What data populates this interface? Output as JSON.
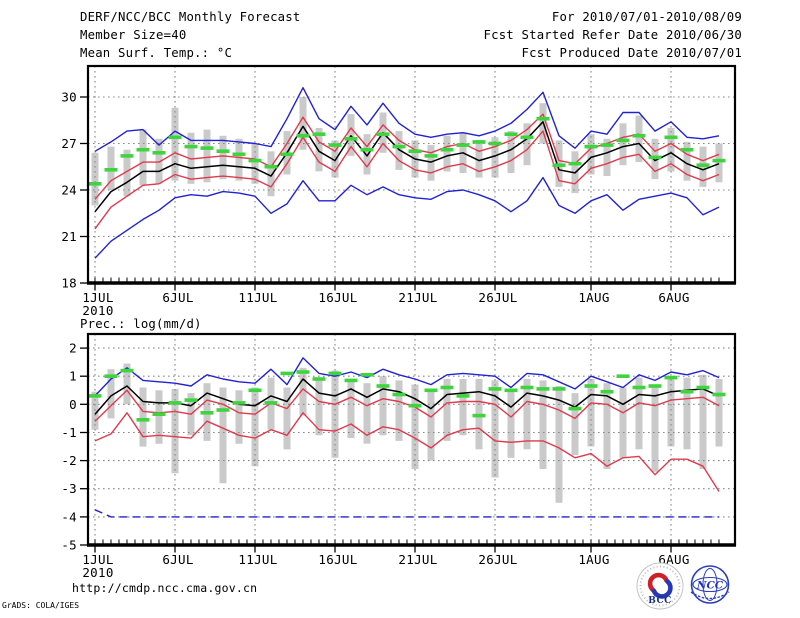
{
  "header": {
    "title": "DERF/NCC/BCC Monthly Forecast",
    "member_size": "Member Size=40",
    "for_period": "For 2010/07/01-2010/08/09",
    "refer_date": "Fcst Started Refer Date 2010/06/30",
    "produced_date": "Fcst Produced Date 2010/07/01"
  },
  "footer": {
    "url": "http://cmdp.ncc.cma.gov.cn",
    "credit": "GrADS: COLA/IGES",
    "logos": [
      {
        "id": "bcc",
        "text": "BCC"
      },
      {
        "id": "ncc",
        "text": "NCC"
      }
    ]
  },
  "colors": {
    "max_min_line": "#2222d2",
    "spread_line": "#e03a4e",
    "mean_line": "#000000",
    "obs_dash": "#3ed43e",
    "spread_bar": "#cacaca",
    "grid": "#8a8a8a",
    "frame": "#000000"
  },
  "chart_data": [
    {
      "id": "temperature",
      "type": "line",
      "title": "Mean Surf. Temp.: °C",
      "n_points": 40,
      "grid": true,
      "ylim": [
        18,
        32
      ],
      "yticks": [
        18,
        21,
        24,
        27,
        30
      ],
      "x_ticks": [
        {
          "day": 1,
          "label": "1JUL",
          "year": "2010"
        },
        {
          "day": 6,
          "label": "6JUL"
        },
        {
          "day": 11,
          "label": "11JUL"
        },
        {
          "day": 16,
          "label": "16JUL"
        },
        {
          "day": 21,
          "label": "21JUL"
        },
        {
          "day": 26,
          "label": "26JUL"
        },
        {
          "day": 32,
          "label": "1AUG"
        },
        {
          "day": 37,
          "label": "6AUG"
        }
      ],
      "series": [
        {
          "name": "member-max",
          "color": "#2222d2",
          "width": 1.4,
          "values": [
            26.5,
            27.1,
            27.8,
            27.9,
            26.9,
            27.8,
            27.2,
            27.2,
            27.2,
            27.1,
            27.0,
            26.8,
            28.6,
            30.6,
            28.6,
            27.9,
            29.4,
            28.2,
            29.6,
            28.3,
            27.6,
            27.4,
            27.6,
            27.7,
            27.5,
            27.8,
            28.3,
            29.2,
            30.3,
            27.5,
            26.7,
            27.8,
            27.6,
            29.0,
            29.0,
            27.8,
            28.4,
            27.4,
            27.3,
            27.5
          ]
        },
        {
          "name": "member-min",
          "color": "#2222d2",
          "width": 1.4,
          "values": [
            19.6,
            20.7,
            21.4,
            22.1,
            22.7,
            23.5,
            23.7,
            23.6,
            23.9,
            23.8,
            23.6,
            22.5,
            23.1,
            24.6,
            23.3,
            23.3,
            24.3,
            23.7,
            24.2,
            23.7,
            23.5,
            23.4,
            23.9,
            24.0,
            23.7,
            23.3,
            22.6,
            23.3,
            24.8,
            23.0,
            22.5,
            23.3,
            23.7,
            22.7,
            23.4,
            23.6,
            23.8,
            23.5,
            22.4,
            22.9
          ]
        },
        {
          "name": "mean-plus-spread",
          "color": "#e03a4e",
          "width": 1.4,
          "values": [
            23.4,
            24.6,
            25.2,
            25.8,
            25.8,
            26.4,
            26.0,
            26.1,
            26.2,
            26.1,
            26.0,
            25.5,
            27.0,
            28.7,
            27.1,
            26.5,
            28.0,
            26.8,
            28.2,
            27.2,
            26.6,
            26.4,
            26.8,
            27.0,
            26.5,
            26.8,
            27.2,
            27.9,
            28.9,
            25.9,
            25.7,
            26.7,
            27.0,
            27.4,
            27.6,
            26.5,
            27.0,
            26.3,
            25.9,
            26.3
          ]
        },
        {
          "name": "mean-minus-spread",
          "color": "#e03a4e",
          "width": 1.4,
          "values": [
            21.5,
            22.9,
            23.6,
            24.3,
            24.4,
            25.0,
            24.7,
            24.8,
            24.9,
            24.8,
            24.7,
            24.2,
            25.7,
            27.4,
            25.8,
            25.2,
            26.8,
            25.5,
            27.0,
            25.9,
            25.3,
            25.1,
            25.5,
            25.7,
            25.2,
            25.5,
            25.9,
            26.6,
            27.8,
            24.6,
            24.4,
            25.4,
            25.7,
            26.1,
            26.3,
            25.2,
            25.7,
            25.0,
            24.6,
            25.0
          ]
        },
        {
          "name": "ensemble-mean",
          "color": "#000000",
          "width": 1.5,
          "values": [
            22.6,
            23.9,
            24.5,
            25.2,
            25.2,
            25.7,
            25.4,
            25.5,
            25.6,
            25.5,
            25.4,
            24.9,
            26.4,
            28.1,
            26.5,
            25.9,
            27.5,
            26.2,
            27.7,
            26.6,
            26.0,
            25.8,
            26.2,
            26.4,
            25.9,
            26.2,
            26.6,
            27.3,
            28.4,
            25.3,
            25.1,
            26.1,
            26.4,
            26.8,
            27.0,
            25.9,
            26.4,
            25.7,
            25.3,
            25.7
          ]
        }
      ],
      "obs_dashes": {
        "name": "observation",
        "color": "#3ed43e",
        "values": [
          24.4,
          25.3,
          26.2,
          26.6,
          26.4,
          27.4,
          26.8,
          26.7,
          26.5,
          26.3,
          25.9,
          25.5,
          26.3,
          27.5,
          27.6,
          26.9,
          27.3,
          26.6,
          27.6,
          26.8,
          26.5,
          26.2,
          26.6,
          26.9,
          27.1,
          27.0,
          27.6,
          27.4,
          28.6,
          25.6,
          25.7,
          26.8,
          26.9,
          27.2,
          27.5,
          26.1,
          27.4,
          26.6,
          25.6,
          25.9
        ]
      },
      "spread_bars": {
        "name": "member-spread",
        "color": "#cacaca",
        "high": [
          26.4,
          26.8,
          26.6,
          27.9,
          27.3,
          29.3,
          27.7,
          27.9,
          27.5,
          27.3,
          27.0,
          26.5,
          27.8,
          30.0,
          28.0,
          27.2,
          28.9,
          27.6,
          29.0,
          27.8,
          27.2,
          26.9,
          27.5,
          27.7,
          27.2,
          27.4,
          27.8,
          28.3,
          29.6,
          27.2,
          26.5,
          27.6,
          27.3,
          28.3,
          28.8,
          27.3,
          28.0,
          27.1,
          26.8,
          27.0
        ],
        "low": [
          23.0,
          24.0,
          23.6,
          24.3,
          24.4,
          24.6,
          24.4,
          24.5,
          24.7,
          24.6,
          24.4,
          23.6,
          25.0,
          26.6,
          25.2,
          24.8,
          26.2,
          25.0,
          26.4,
          25.3,
          24.8,
          24.6,
          25.2,
          25.1,
          24.8,
          24.8,
          25.1,
          25.6,
          27.0,
          24.2,
          23.8,
          25.0,
          24.9,
          25.6,
          25.8,
          24.7,
          25.2,
          24.6,
          24.2,
          24.5
        ]
      }
    },
    {
      "id": "precipitation",
      "type": "line",
      "title": "Prec.: log(mm/d)",
      "n_points": 40,
      "grid": true,
      "ylim": [
        -5,
        2.5
      ],
      "yticks": [
        -5,
        -4,
        -3,
        -2,
        -1,
        0,
        1,
        2
      ],
      "x_ticks": [
        {
          "day": 1,
          "label": "1JUL",
          "year": "2010"
        },
        {
          "day": 6,
          "label": "6JUL"
        },
        {
          "day": 11,
          "label": "11JUL"
        },
        {
          "day": 16,
          "label": "16JUL"
        },
        {
          "day": 21,
          "label": "21JUL"
        },
        {
          "day": 26,
          "label": "26JUL"
        },
        {
          "day": 32,
          "label": "1AUG"
        },
        {
          "day": 37,
          "label": "6AUG"
        }
      ],
      "series": [
        {
          "name": "member-max",
          "color": "#2222d2",
          "width": 1.4,
          "values": [
            0.3,
            0.9,
            1.3,
            0.85,
            0.8,
            0.75,
            0.65,
            1.05,
            0.9,
            0.8,
            0.75,
            1.25,
            0.7,
            1.65,
            1.1,
            1.0,
            1.15,
            0.95,
            1.25,
            1.05,
            0.9,
            0.7,
            1.05,
            1.1,
            1.05,
            1.0,
            0.6,
            1.1,
            1.05,
            0.8,
            0.55,
            1.0,
            0.8,
            0.6,
            1.05,
            0.85,
            1.15,
            1.05,
            1.2,
            0.95
          ]
        },
        {
          "name": "member-min",
          "color": "#2222d2",
          "width": 1.4,
          "dash": "8 5",
          "values": [
            -3.75,
            -4,
            -4,
            -4,
            -4,
            -4,
            -4,
            -4,
            -4,
            -4,
            -4,
            -4,
            -4,
            -4,
            -4,
            -4,
            -4,
            -4,
            -4,
            -4,
            -4,
            -4,
            -4,
            -4,
            -4,
            -4,
            -4,
            -4,
            -4,
            -4,
            -4,
            -4,
            -4,
            -4,
            -4,
            -4,
            -4,
            -4,
            -4,
            -4
          ]
        },
        {
          "name": "mean-plus-spread",
          "color": "#e03a4e",
          "width": 1.4,
          "values": [
            -0.6,
            -0.05,
            0.5,
            -0.25,
            -0.3,
            -0.25,
            -0.35,
            0.15,
            0.0,
            -0.3,
            -0.35,
            0.05,
            -0.15,
            0.55,
            0.1,
            0.0,
            0.25,
            -0.05,
            0.2,
            0.1,
            -0.1,
            -0.45,
            0.05,
            0.1,
            0.1,
            0.0,
            -0.45,
            0.1,
            0.0,
            -0.2,
            -0.5,
            0.05,
            0.0,
            -0.3,
            0.05,
            -0.05,
            0.15,
            0.2,
            0.25,
            -0.05
          ]
        },
        {
          "name": "mean-minus-spread",
          "color": "#e03a4e",
          "width": 1.4,
          "values": [
            -1.3,
            -1.05,
            -0.3,
            -1.15,
            -1.1,
            -1.15,
            -1.2,
            -0.6,
            -0.85,
            -1.1,
            -1.2,
            -0.9,
            -1.1,
            -0.3,
            -0.9,
            -0.95,
            -0.7,
            -1.1,
            -0.8,
            -0.9,
            -1.2,
            -1.55,
            -1.1,
            -0.9,
            -0.85,
            -1.3,
            -1.35,
            -1.3,
            -1.3,
            -1.55,
            -1.9,
            -1.75,
            -2.2,
            -1.9,
            -1.85,
            -2.5,
            -1.95,
            -1.95,
            -2.2,
            -3.1
          ]
        },
        {
          "name": "ensemble-mean",
          "color": "#000000",
          "width": 1.5,
          "values": [
            -0.35,
            0.3,
            0.65,
            0.1,
            0.05,
            0.05,
            -0.05,
            0.4,
            0.2,
            0.0,
            -0.05,
            0.3,
            0.1,
            0.9,
            0.4,
            0.3,
            0.55,
            0.25,
            0.55,
            0.45,
            0.2,
            -0.15,
            0.35,
            0.4,
            0.45,
            0.3,
            -0.1,
            0.4,
            0.3,
            0.15,
            -0.1,
            0.35,
            0.3,
            0.0,
            0.35,
            0.3,
            0.45,
            0.5,
            0.55,
            0.3
          ]
        }
      ],
      "obs_dashes": {
        "name": "observation",
        "color": "#3ed43e",
        "values": [
          0.3,
          1.0,
          1.2,
          -0.55,
          -0.35,
          0.05,
          0.15,
          -0.3,
          -0.2,
          0.05,
          0.5,
          0.05,
          1.1,
          1.15,
          0.9,
          1.1,
          0.85,
          1.05,
          0.65,
          0.35,
          -0.05,
          0.5,
          0.6,
          0.3,
          -0.4,
          0.55,
          0.5,
          0.6,
          0.55,
          0.55,
          -0.15,
          0.65,
          0.45,
          1.0,
          0.6,
          0.65,
          0.95,
          0.45,
          0.6,
          0.35
        ]
      },
      "spread_bars": {
        "name": "member-spread",
        "color": "#cacaca",
        "high": [
          0.45,
          1.25,
          1.45,
          0.6,
          0.5,
          0.55,
          0.4,
          0.75,
          0.6,
          0.5,
          0.6,
          0.95,
          0.6,
          1.3,
          0.9,
          1.2,
          0.9,
          0.75,
          1.0,
          0.85,
          0.7,
          0.45,
          0.9,
          0.9,
          0.9,
          0.85,
          0.45,
          0.9,
          0.85,
          0.65,
          0.4,
          0.9,
          0.75,
          0.6,
          0.95,
          0.7,
          1.0,
          0.95,
          1.05,
          0.9
        ],
        "low": [
          -0.9,
          -0.5,
          0.0,
          -1.5,
          -1.4,
          -2.45,
          -1.1,
          -1.3,
          -2.8,
          -1.4,
          -2.2,
          -0.9,
          -1.6,
          -0.4,
          -1.1,
          -1.9,
          -1.2,
          -1.4,
          -1.1,
          -1.3,
          -2.3,
          -2.0,
          -1.3,
          -1.1,
          -1.6,
          -2.6,
          -1.9,
          -1.6,
          -2.3,
          -3.5,
          -1.8,
          -1.5,
          -2.3,
          -1.9,
          -1.6,
          -2.4,
          -1.5,
          -1.6,
          -2.3,
          -1.5
        ]
      }
    }
  ]
}
